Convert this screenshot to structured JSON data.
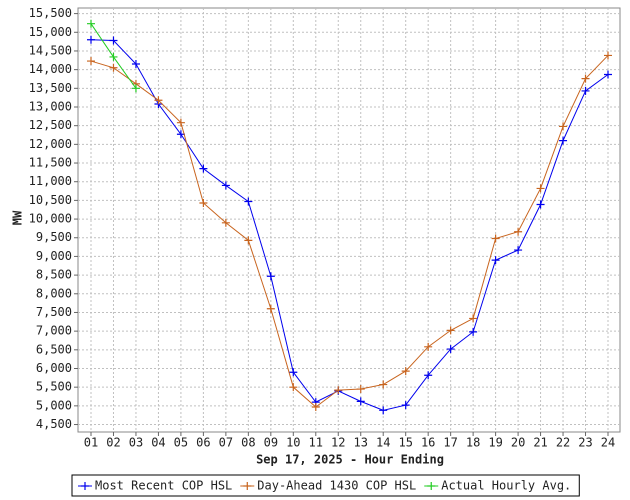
{
  "chart_data": {
    "type": "line",
    "xlabel": "Sep 17, 2025 - Hour Ending",
    "ylabel": "MW",
    "categories": [
      "01",
      "02",
      "03",
      "04",
      "05",
      "06",
      "07",
      "08",
      "09",
      "10",
      "11",
      "12",
      "13",
      "14",
      "15",
      "16",
      "17",
      "18",
      "19",
      "20",
      "21",
      "22",
      "23",
      "24"
    ],
    "series": [
      {
        "name": "Most Recent COP HSL",
        "color": "#0000ee",
        "values": [
          14800,
          14780,
          14150,
          13080,
          12270,
          11350,
          10900,
          10470,
          8470,
          5900,
          5100,
          5400,
          5120,
          4880,
          5020,
          5820,
          6520,
          6980,
          8900,
          9170,
          10390,
          12100,
          13430,
          13870
        ]
      },
      {
        "name": "Day-Ahead 1430 COP HSL",
        "color": "#c8641e",
        "values": [
          14230,
          14050,
          13620,
          13180,
          12580,
          10430,
          9900,
          9430,
          7600,
          5500,
          4970,
          5420,
          5450,
          5570,
          5930,
          6580,
          7020,
          7340,
          9480,
          9660,
          10820,
          12480,
          13760,
          14380
        ]
      },
      {
        "name": "Actual Hourly Avg.",
        "color": "#22cc22",
        "values": [
          15230,
          14340,
          13500,
          null,
          null,
          null,
          null,
          null,
          null,
          null,
          null,
          null,
          null,
          null,
          null,
          null,
          null,
          null,
          null,
          null,
          null,
          null,
          null,
          null
        ]
      }
    ],
    "ylim": [
      4300,
      15650
    ],
    "yticks": [
      {
        "value": 4500,
        "label": "4,500"
      },
      {
        "value": 5000,
        "label": "5,000"
      },
      {
        "value": 5500,
        "label": "5,500"
      },
      {
        "value": 6000,
        "label": "6,000"
      },
      {
        "value": 6500,
        "label": "6,500"
      },
      {
        "value": 7000,
        "label": "7,000"
      },
      {
        "value": 7500,
        "label": "7,500"
      },
      {
        "value": 8000,
        "label": "8,000"
      },
      {
        "value": 8500,
        "label": "8,500"
      },
      {
        "value": 9000,
        "label": "9,000"
      },
      {
        "value": 9500,
        "label": "9,500"
      },
      {
        "value": 10000,
        "label": "10,000"
      },
      {
        "value": 10500,
        "label": "10,500"
      },
      {
        "value": 11000,
        "label": "11,000"
      },
      {
        "value": 11500,
        "label": "11,500"
      },
      {
        "value": 12000,
        "label": "12,000"
      },
      {
        "value": 12500,
        "label": "12,500"
      },
      {
        "value": 13000,
        "label": "13,000"
      },
      {
        "value": 13500,
        "label": "13,500"
      },
      {
        "value": 14000,
        "label": "14,000"
      },
      {
        "value": 14500,
        "label": "14,500"
      },
      {
        "value": 15000,
        "label": "15,000"
      },
      {
        "value": 15500,
        "label": "15,500"
      }
    ],
    "grid": true
  }
}
